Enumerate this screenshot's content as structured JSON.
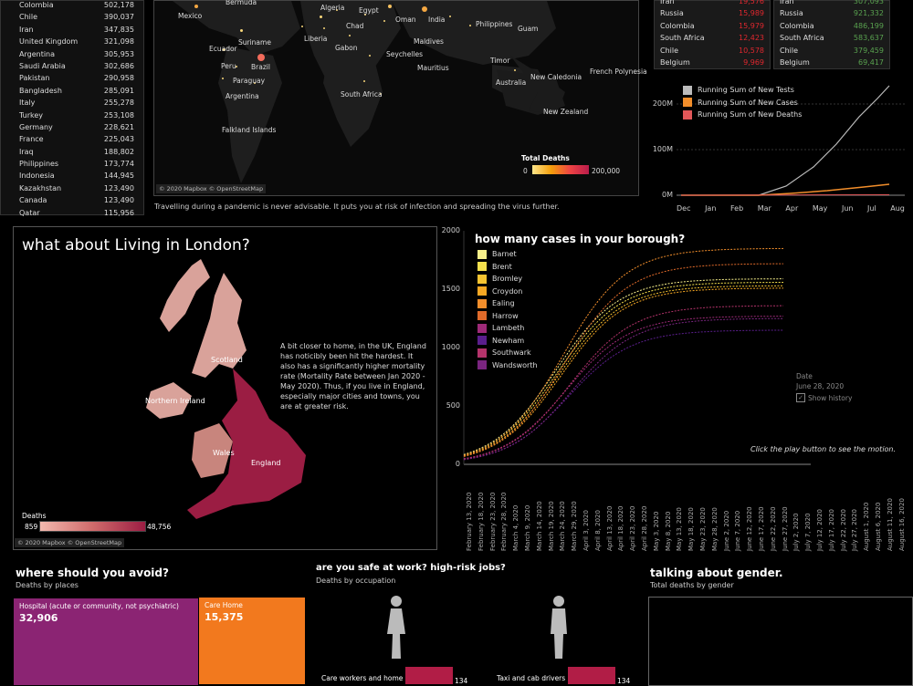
{
  "countries": [
    {
      "name": "Colombia",
      "value": "502,178"
    },
    {
      "name": "Chile",
      "value": "390,037"
    },
    {
      "name": "Iran",
      "value": "347,835"
    },
    {
      "name": "United Kingdom",
      "value": "321,098"
    },
    {
      "name": "Argentina",
      "value": "305,953"
    },
    {
      "name": "Saudi Arabia",
      "value": "302,686"
    },
    {
      "name": "Pakistan",
      "value": "290,958"
    },
    {
      "name": "Bangladesh",
      "value": "285,091"
    },
    {
      "name": "Italy",
      "value": "255,278"
    },
    {
      "name": "Turkey",
      "value": "253,108"
    },
    {
      "name": "Germany",
      "value": "228,621"
    },
    {
      "name": "France",
      "value": "225,043"
    },
    {
      "name": "Iraq",
      "value": "188,802"
    },
    {
      "name": "Philippines",
      "value": "173,774"
    },
    {
      "name": "Indonesia",
      "value": "144,945"
    },
    {
      "name": "Kazakhstan",
      "value": "123,490"
    },
    {
      "name": "Canada",
      "value": "123,490"
    },
    {
      "name": "Qatar",
      "value": "115,956"
    }
  ],
  "world_map": {
    "labels": [
      "Mexico",
      "Bermuda",
      "Algeria",
      "Egypt",
      "Oman",
      "India",
      "Chad",
      "Philippines",
      "Guam",
      "Suriname",
      "Liberia",
      "Gabon",
      "Maldives",
      "Ecuador",
      "Brazil",
      "Seychelles",
      "Peru",
      "Mauritius",
      "Timor",
      "Paraguay",
      "French Polynesia",
      "New Caledonia",
      "Australia",
      "Argentina",
      "South Africa",
      "New Zealand",
      "Falkland Islands"
    ],
    "legend_title": "Total Deaths",
    "legend_min": "0",
    "legend_max": "200,000",
    "credit": "© 2020 Mapbox © OpenStreetMap"
  },
  "travel_note": "Travelling during a pandemic is never advisable. It puts you at risk of infection and spreading the virus further.",
  "deaths_table": [
    {
      "name": "Iran",
      "value": "19,576"
    },
    {
      "name": "Russia",
      "value": "15,989"
    },
    {
      "name": "Colombia",
      "value": "15,979"
    },
    {
      "name": "South Africa",
      "value": "12,423"
    },
    {
      "name": "Chile",
      "value": "10,578"
    },
    {
      "name": "Belgium",
      "value": "9,969"
    }
  ],
  "recovered_table": [
    {
      "name": "Iran",
      "value": "307,093"
    },
    {
      "name": "Russia",
      "value": "921,332"
    },
    {
      "name": "Colombia",
      "value": "486,199"
    },
    {
      "name": "South Africa",
      "value": "583,637"
    },
    {
      "name": "Chile",
      "value": "379,459"
    },
    {
      "name": "Belgium",
      "value": "69,417"
    }
  ],
  "running_sum_chart": {
    "legend": [
      {
        "name": "Running Sum of New Tests",
        "color": "#bbbbbb"
      },
      {
        "name": "Running Sum of New Cases",
        "color": "#f28e2b"
      },
      {
        "name": "Running Sum of New Deaths",
        "color": "#e15759"
      }
    ],
    "yticks": [
      "200M",
      "100M",
      "0M"
    ],
    "months": [
      "Dec",
      "Jan",
      "Feb",
      "Mar",
      "Apr",
      "May",
      "Jun",
      "Jul",
      "Aug"
    ]
  },
  "london": {
    "title": "what about Living in London?",
    "text": "A bit closer to home, in the UK, England has noticibly been hit the hardest. It also has a significantly higher mortality rate (Mortality Rate between Jan 2020 - May 2020). Thus, if you live in England, especially major cities and towns, you are at greater risk.",
    "regions": [
      "Scotland",
      "Northern Ireland",
      "Wales",
      "England"
    ],
    "legend_title": "Deaths",
    "legend_min": "859",
    "legend_max": "48,756",
    "credit": "© 2020 Mapbox © OpenStreetMap"
  },
  "borough_chart": {
    "title": "how many cases in your borough?",
    "boroughs": [
      {
        "name": "Barnet",
        "color": "#f7ef8a"
      },
      {
        "name": "Brent",
        "color": "#f4e04d"
      },
      {
        "name": "Bromley",
        "color": "#f6c431"
      },
      {
        "name": "Croydon",
        "color": "#f7a823"
      },
      {
        "name": "Ealing",
        "color": "#f28e2b"
      },
      {
        "name": "Harrow",
        "color": "#e06a2a"
      },
      {
        "name": "Lambeth",
        "color": "#9e2a78"
      },
      {
        "name": "Newham",
        "color": "#5a1e8c"
      },
      {
        "name": "Southwark",
        "color": "#b4336b"
      },
      {
        "name": "Wandsworth",
        "color": "#7a2580"
      }
    ],
    "yticks": [
      "2000",
      "1500",
      "1000",
      "500",
      "0"
    ],
    "dates": [
      "February 13, 2020",
      "February 18, 2020",
      "February 23, 2020",
      "February 28, 2020",
      "March 4, 2020",
      "March 9, 2020",
      "March 14, 2020",
      "March 19, 2020",
      "March 24, 2020",
      "March 29, 2020",
      "April 3, 2020",
      "April 8, 2020",
      "April 13, 2020",
      "April 18, 2020",
      "April 23, 2020",
      "April 28, 2020",
      "May 3, 2020",
      "May 8, 2020",
      "May 13, 2020",
      "May 18, 2020",
      "May 23, 2020",
      "May 28, 2020",
      "June 2, 2020",
      "June 7, 2020",
      "June 12, 2020",
      "June 17, 2020",
      "June 22, 2020",
      "June 27, 2020",
      "July 2, 2020",
      "July 7, 2020",
      "July 12, 2020",
      "July 17, 2020",
      "July 22, 2020",
      "July 27, 2020",
      "August 1, 2020",
      "August 6, 2020",
      "August 11, 2020",
      "August 16, 2020"
    ],
    "date_label": "Date",
    "date_value": "June 28, 2020",
    "show_history": "Show history",
    "play_note": "Click the play button to see  the motion."
  },
  "avoid": {
    "title": "where should you avoid?",
    "subtitle": "Deaths by places",
    "items": [
      {
        "name": "Hospital (acute or community, not psychiatric)",
        "value": "32,906",
        "color": "#8b2473"
      },
      {
        "name": "Care Home",
        "value": "15,375",
        "color": "#f2791e"
      }
    ]
  },
  "work": {
    "title": "are you safe at work? high-risk jobs?",
    "subtitle": "Deaths by occupation",
    "jobs": [
      {
        "name": "Care workers and home",
        "value": "134"
      },
      {
        "name": "Taxi and cab drivers",
        "value": "134"
      }
    ]
  },
  "gender": {
    "title": "talking about gender.",
    "subtitle": "Total deaths by gender"
  }
}
